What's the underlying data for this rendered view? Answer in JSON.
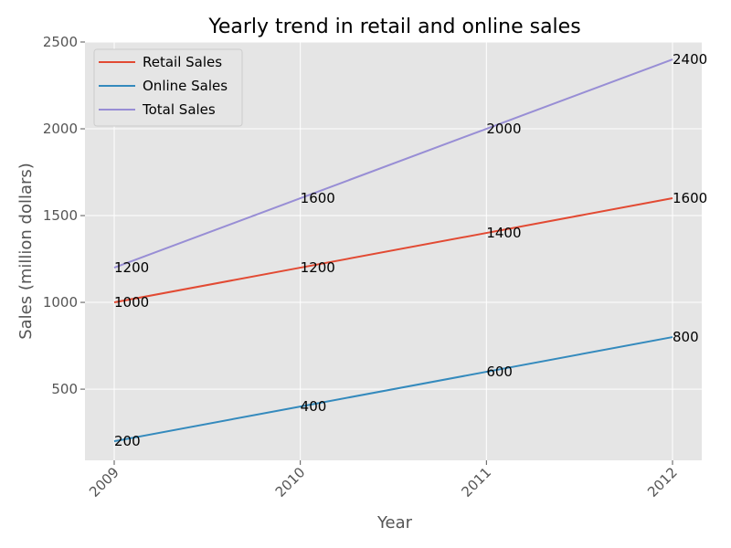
{
  "chart_data": {
    "type": "line",
    "title": "Yearly trend in retail and online sales",
    "xlabel": "Year",
    "ylabel": "Sales (million dollars)",
    "categories": [
      "2009",
      "2010",
      "2011",
      "2012"
    ],
    "ylim": [
      90,
      2500
    ],
    "yticks": [
      500,
      1000,
      1500,
      2000,
      2500
    ],
    "grid": true,
    "legend_position": "top-left",
    "series": [
      {
        "name": "Retail Sales",
        "color": "#E24A33",
        "values": [
          1000,
          1200,
          1400,
          1600
        ]
      },
      {
        "name": "Online Sales",
        "color": "#348ABD",
        "values": [
          200,
          400,
          600,
          800
        ]
      },
      {
        "name": "Total Sales",
        "color": "#988ED5",
        "values": [
          1200,
          1600,
          2000,
          2400
        ]
      }
    ]
  }
}
